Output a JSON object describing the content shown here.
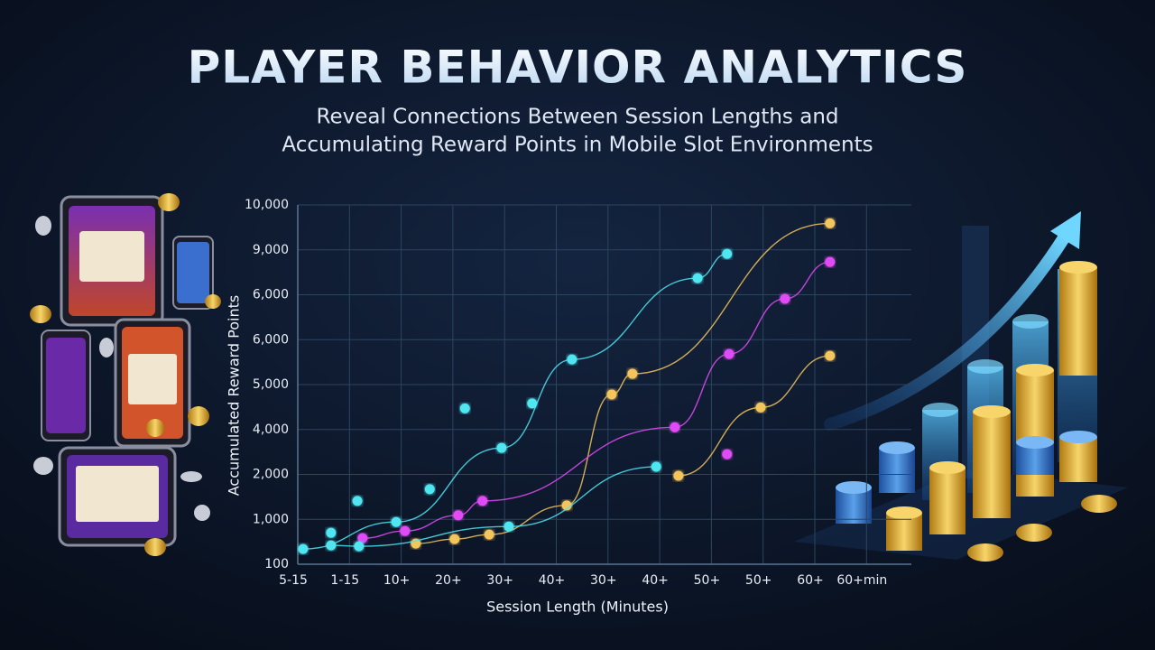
{
  "chart_data": {
    "type": "line",
    "title": "PLAYER BEHAVIOR ANALYTICS",
    "subtitle": [
      "Reveal Connections Between Session Lengths and",
      "Accumulating Reward Points in Mobile Slot Environments"
    ],
    "x_label": "Session Length (Minutes)",
    "y_label": "Accumulated Reward Points",
    "x_categories": [
      "5-15",
      "1-15",
      "10+",
      "20+",
      "30+",
      "40+",
      "30+",
      "40+",
      "50+",
      "50+",
      "60+",
      "60+min"
    ],
    "y_levels": [
      "100",
      "1,000",
      "2,000",
      "4,000",
      "5,000",
      "6,000",
      "6,000",
      "9,000",
      "10,000"
    ],
    "grid": true,
    "series": [
      {
        "color": "#4fe6f2",
        "mode": "lines+markers",
        "x": [
          0.19,
          1.99,
          4.03,
          5.39,
          7.82,
          8.39
        ],
        "values": [
          0.34,
          0.94,
          2.59,
          4.56,
          6.37,
          6.91
        ]
      },
      {
        "color": "#4fe6f2",
        "mode": "markers",
        "x": [
          0.73,
          1.24,
          2.64,
          3.32,
          4.62
        ],
        "values": [
          0.7,
          1.41,
          1.67,
          3.47,
          3.58
        ]
      },
      {
        "color": "#f4c55c",
        "mode": "lines+markers",
        "x": [
          2.37,
          3.12,
          3.79,
          5.29,
          6.16,
          6.56,
          10.38
        ],
        "values": [
          0.46,
          0.56,
          0.66,
          1.31,
          3.78,
          4.24,
          7.59
        ]
      },
      {
        "color": "#e04cf5",
        "mode": "lines+markers",
        "x": [
          1.34,
          2.16,
          3.19,
          3.66,
          7.38,
          8.43,
          9.51,
          10.38
        ],
        "values": [
          0.58,
          0.74,
          1.09,
          1.41,
          3.05,
          4.68,
          5.91,
          6.73
        ]
      },
      {
        "color": "#e04cf5",
        "mode": "markers",
        "x": [
          8.39
        ],
        "values": [
          2.45
        ]
      },
      {
        "color": "#4fe6f2",
        "mode": "lines+markers",
        "x": [
          0.73,
          1.27,
          4.17,
          7.02
        ],
        "values": [
          0.42,
          0.4,
          0.84,
          2.17
        ]
      },
      {
        "color": "#f4c55c",
        "mode": "lines+markers",
        "x": [
          7.45,
          9.04,
          10.38
        ],
        "values": [
          1.97,
          3.49,
          4.64
        ]
      }
    ]
  }
}
